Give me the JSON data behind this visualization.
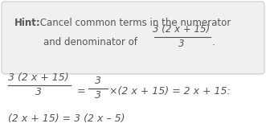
{
  "text_color": "#555555",
  "box_facecolor": "#f0f0f0",
  "box_edgecolor": "#cccccc",
  "hint_bold": "Hint:",
  "hint_rest": " Cancel common terms in the numerator",
  "line2_prefix": "and denominator of ",
  "frac_hint_num": "3 (2 x + 15)",
  "frac_hint_den": "3",
  "period": ".",
  "eq_left_num": "3 (2 x + 15)",
  "eq_left_den": "3",
  "eq_equals": "=",
  "eq_right_frac_num": "3",
  "eq_right_frac_den": "3",
  "eq_right_rest": "×(2 x + 15) = 2 x + 15:",
  "eq_line2": "(2 x + 15) = 3 (2 x – 5)"
}
